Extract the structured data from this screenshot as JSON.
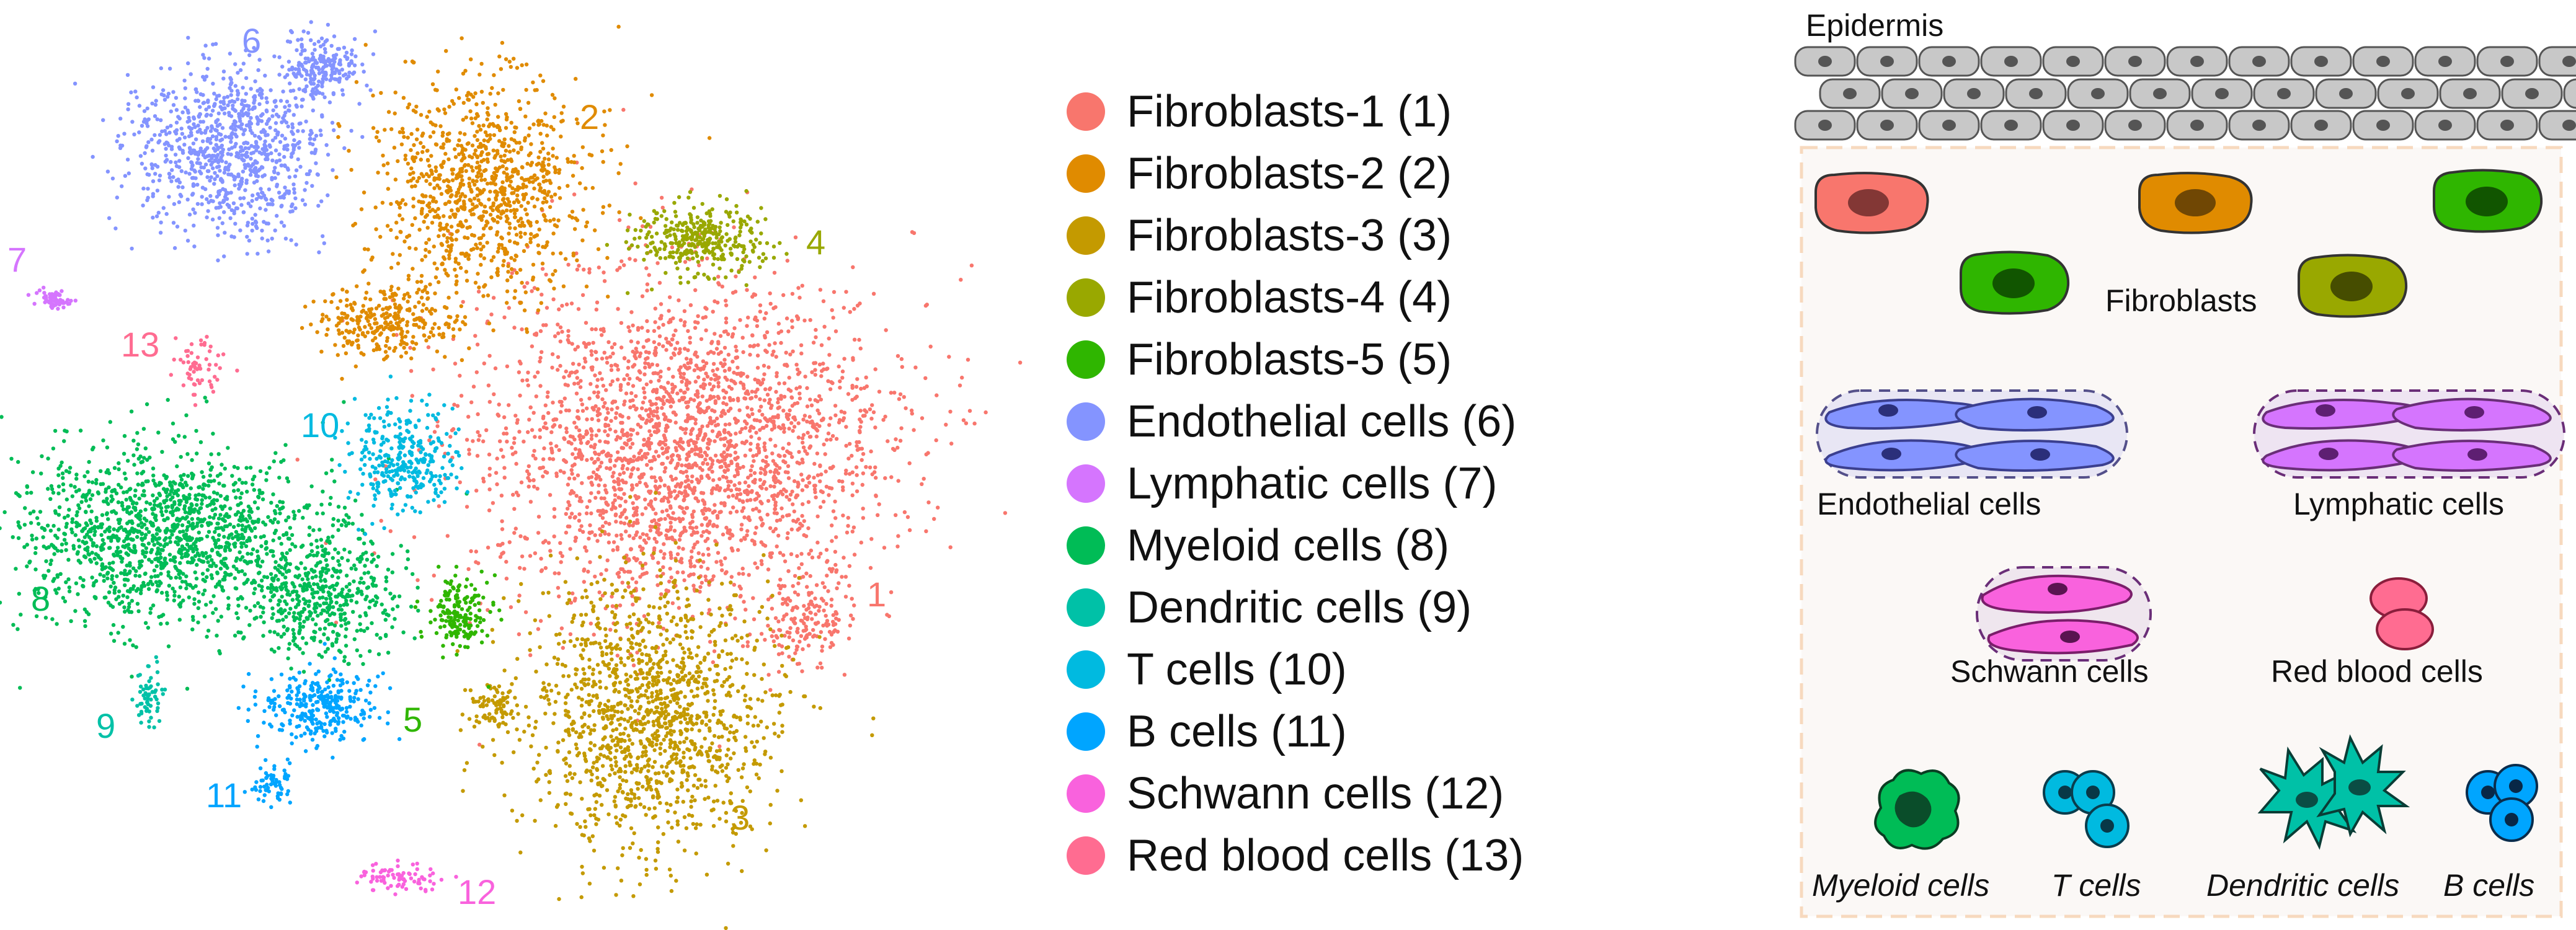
{
  "colors": {
    "fibroblasts_1": "#F8766D",
    "fibroblasts_2": "#E08B00",
    "fibroblasts_3": "#C49A00",
    "fibroblasts_4": "#99A800",
    "fibroblasts_5": "#2FB600",
    "endothelial": "#8494FF",
    "lymphatic": "#D575FE",
    "myeloid": "#00BC56",
    "dendritic": "#00C1A7",
    "t_cells": "#00BAE0",
    "b_cells": "#00A5FF",
    "schwann": "#F962DD",
    "red_blood": "#FF6C91"
  },
  "umap": {
    "clusters": [
      {
        "id": "1",
        "label": "1",
        "color_key": "fibroblasts_1"
      },
      {
        "id": "2",
        "label": "2",
        "color_key": "fibroblasts_2"
      },
      {
        "id": "3",
        "label": "3",
        "color_key": "fibroblasts_3"
      },
      {
        "id": "4",
        "label": "4",
        "color_key": "fibroblasts_4"
      },
      {
        "id": "5",
        "label": "5",
        "color_key": "fibroblasts_5"
      },
      {
        "id": "6",
        "label": "6",
        "color_key": "endothelial"
      },
      {
        "id": "7",
        "label": "7",
        "color_key": "lymphatic"
      },
      {
        "id": "8",
        "label": "8",
        "color_key": "myeloid"
      },
      {
        "id": "9",
        "label": "9",
        "color_key": "dendritic"
      },
      {
        "id": "10",
        "label": "10",
        "color_key": "t_cells"
      },
      {
        "id": "11",
        "label": "11",
        "color_key": "b_cells"
      },
      {
        "id": "12",
        "label": "12",
        "color_key": "schwann"
      },
      {
        "id": "13",
        "label": "13",
        "color_key": "red_blood"
      }
    ]
  },
  "legend": {
    "items": [
      {
        "label": "Fibroblasts-1 (1)",
        "color_key": "fibroblasts_1"
      },
      {
        "label": "Fibroblasts-2 (2)",
        "color_key": "fibroblasts_2"
      },
      {
        "label": "Fibroblasts-3 (3)",
        "color_key": "fibroblasts_3"
      },
      {
        "label": "Fibroblasts-4 (4)",
        "color_key": "fibroblasts_4"
      },
      {
        "label": "Fibroblasts-5 (5)",
        "color_key": "fibroblasts_5"
      },
      {
        "label": "Endothelial cells (6)",
        "color_key": "endothelial"
      },
      {
        "label": "Lymphatic cells (7)",
        "color_key": "lymphatic"
      },
      {
        "label": "Myeloid cells (8)",
        "color_key": "myeloid"
      },
      {
        "label": "Dendritic cells (9)",
        "color_key": "dendritic"
      },
      {
        "label": "T cells (10)",
        "color_key": "t_cells"
      },
      {
        "label": "B cells (11)",
        "color_key": "b_cells"
      },
      {
        "label": "Schwann cells (12)",
        "color_key": "schwann"
      },
      {
        "label": "Red blood cells (13)",
        "color_key": "red_blood"
      }
    ]
  },
  "schematic": {
    "epidermis_label": "Epidermis",
    "fibroblasts_label": "Fibroblasts",
    "endothelial_label": "Endothelial cells",
    "lymphatic_label": "Lymphatic cells",
    "schwann_label": "Schwann cells",
    "red_blood_label": "Red blood cells",
    "myeloid_label": "Myeloid cells",
    "t_cells_label": "T cells",
    "dendritic_label": "Dendritic cells",
    "b_cells_label": "B cells"
  }
}
